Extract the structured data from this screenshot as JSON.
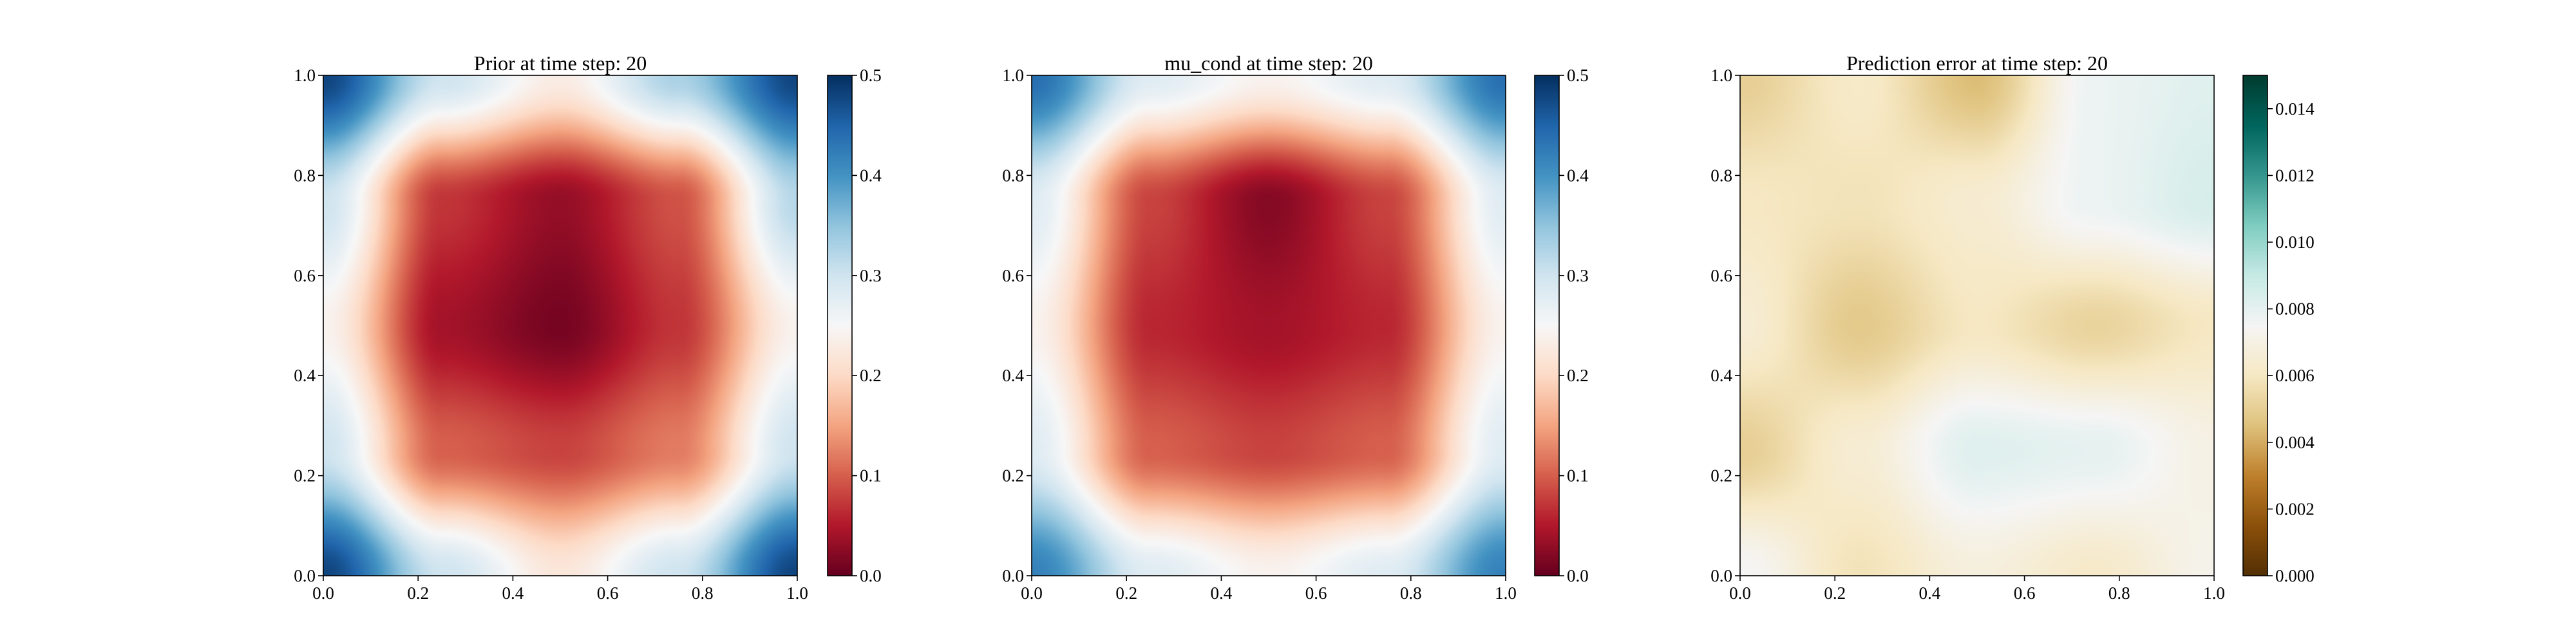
{
  "figure": {
    "panels": [
      {
        "title": "Prior at time step: 20",
        "colormap": "RdBu",
        "colorbar_ticks": [
          "0.0",
          "0.1",
          "0.2",
          "0.3",
          "0.4",
          "0.5"
        ]
      },
      {
        "title": "mu_cond at time step: 20",
        "colormap": "RdBu",
        "colorbar_ticks": [
          "0.0",
          "0.1",
          "0.2",
          "0.3",
          "0.4",
          "0.5"
        ]
      },
      {
        "title": "Prediction error at time step: 20",
        "colormap": "BrBG",
        "colorbar_ticks": [
          "0.000",
          "0.002",
          "0.004",
          "0.006",
          "0.008",
          "0.010",
          "0.012",
          "0.014"
        ]
      }
    ],
    "axis_ticks": [
      "0.0",
      "0.2",
      "0.4",
      "0.6",
      "0.8",
      "1.0"
    ]
  },
  "chart_data": [
    {
      "type": "heatmap",
      "title": "Prior at time step: 20",
      "xlabel": "",
      "ylabel": "",
      "xlim": [
        0,
        1
      ],
      "ylim": [
        0,
        1
      ],
      "zlim": [
        0,
        0.5
      ],
      "colorbar": {
        "ticks": [
          0,
          0.1,
          0.2,
          0.3,
          0.4,
          0.5
        ],
        "colors": [
          "#67001f",
          "#b2182b",
          "#d6604d",
          "#f4a582",
          "#fddbc7",
          "#f7f7f7",
          "#d1e5f0",
          "#92c5de",
          "#4393c3",
          "#2166ac",
          "#053061"
        ]
      },
      "grid_x": [
        0,
        0.25,
        0.5,
        0.75,
        1
      ],
      "grid_y": [
        0,
        0.25,
        0.5,
        0.75,
        1
      ],
      "values": [
        [
          0.48,
          0.3,
          0.22,
          0.3,
          0.48
        ],
        [
          0.3,
          0.1,
          0.08,
          0.12,
          0.3
        ],
        [
          0.24,
          0.04,
          0.01,
          0.07,
          0.24
        ],
        [
          0.3,
          0.07,
          0.03,
          0.09,
          0.32
        ],
        [
          0.48,
          0.3,
          0.23,
          0.33,
          0.48
        ]
      ]
    },
    {
      "type": "heatmap",
      "title": "mu_cond at time step: 20",
      "xlabel": "",
      "ylabel": "",
      "xlim": [
        0,
        1
      ],
      "ylim": [
        0,
        1
      ],
      "zlim": [
        0,
        0.5
      ],
      "colorbar": {
        "ticks": [
          0,
          0.1,
          0.2,
          0.3,
          0.4,
          0.5
        ],
        "colors": [
          "#67001f",
          "#b2182b",
          "#d6604d",
          "#f4a582",
          "#fddbc7",
          "#f7f7f7",
          "#d1e5f0",
          "#92c5de",
          "#4393c3",
          "#2166ac",
          "#053061"
        ]
      },
      "grid_x": [
        0,
        0.25,
        0.5,
        0.75,
        1
      ],
      "grid_y": [
        0,
        0.25,
        0.5,
        0.75,
        1
      ],
      "values": [
        [
          0.42,
          0.28,
          0.24,
          0.28,
          0.42
        ],
        [
          0.28,
          0.1,
          0.08,
          0.1,
          0.28
        ],
        [
          0.24,
          0.06,
          0.04,
          0.06,
          0.24
        ],
        [
          0.28,
          0.08,
          0.02,
          0.08,
          0.28
        ],
        [
          0.44,
          0.28,
          0.24,
          0.28,
          0.44
        ]
      ]
    },
    {
      "type": "heatmap",
      "title": "Prediction error at time step: 20",
      "xlabel": "",
      "ylabel": "",
      "xlim": [
        0,
        1
      ],
      "ylim": [
        0,
        1
      ],
      "zlim": [
        0,
        0.015
      ],
      "colorbar": {
        "ticks": [
          0,
          0.002,
          0.004,
          0.006,
          0.008,
          0.01,
          0.012,
          0.014
        ],
        "colors": [
          "#543005",
          "#8c510a",
          "#bf812d",
          "#dfc27d",
          "#f6e8c3",
          "#f5f5f5",
          "#c7eae5",
          "#80cdc1",
          "#35978f",
          "#01665e",
          "#003c30"
        ]
      },
      "grid_x": [
        0,
        0.25,
        0.5,
        0.75,
        1
      ],
      "grid_y": [
        0,
        0.25,
        0.5,
        0.75,
        1
      ],
      "values": [
        [
          0.0075,
          0.0058,
          0.0068,
          0.0062,
          0.0072
        ],
        [
          0.005,
          0.0065,
          0.0082,
          0.008,
          0.007
        ],
        [
          0.0065,
          0.0048,
          0.006,
          0.0052,
          0.006
        ],
        [
          0.006,
          0.0058,
          0.0064,
          0.0078,
          0.0085
        ],
        [
          0.005,
          0.0062,
          0.0044,
          0.0078,
          0.0082
        ]
      ]
    }
  ]
}
